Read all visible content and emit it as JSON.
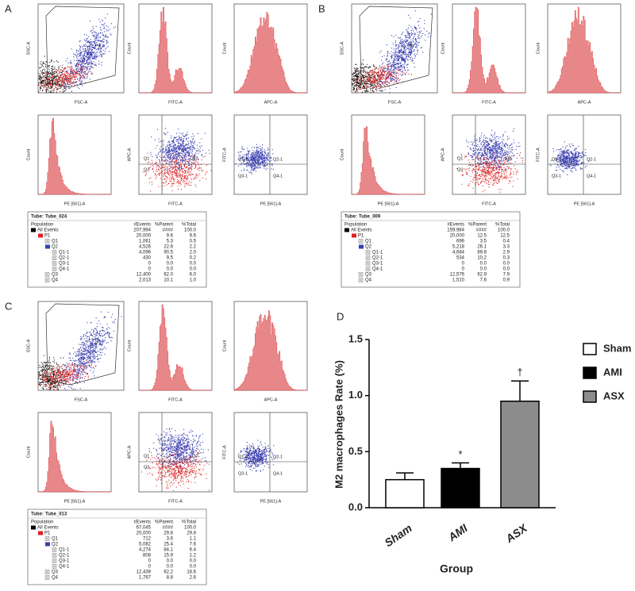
{
  "plots": {
    "axes": [
      [
        "FSC-A",
        "SSC-A"
      ],
      [
        "FITC-A",
        "Count"
      ],
      [
        "APC-A",
        "Count"
      ],
      [
        "PE [561]-A",
        "Count"
      ],
      [
        "FITC-A",
        "APC-A"
      ],
      [
        "PE [561]-A",
        "FITC-A"
      ]
    ],
    "gate": "P1",
    "quad1": [
      "Q1",
      "Q2",
      "Q3"
    ],
    "quad2": [
      "Q1-1",
      "Q2-1",
      "Q3-1",
      "Q4-1"
    ]
  },
  "panels": [
    {
      "label": "A",
      "tube_label": "Tube:",
      "tube": "Tube_024",
      "header": [
        "Population",
        "#Events",
        "%Parent",
        "%Total"
      ],
      "rows": [
        [
          "All Events",
          "207,994",
          "####",
          "100.0"
        ],
        [
          "P1",
          "20,000",
          "9.6",
          "9.6"
        ],
        [
          "Q1",
          "1,061",
          "5.3",
          "0.5"
        ],
        [
          "Q2",
          "4,526",
          "22.6",
          "2.2"
        ],
        [
          "Q1-1",
          "4,096",
          "90.5",
          "2.0"
        ],
        [
          "Q2-1",
          "430",
          "9.5",
          "0.2"
        ],
        [
          "Q3-1",
          "0",
          "0.0",
          "0.0"
        ],
        [
          "Q4-1",
          "0",
          "0.0",
          "0.0"
        ],
        [
          "Q3",
          "12,400",
          "62.0",
          "6.0"
        ],
        [
          "Q4",
          "2,013",
          "10.1",
          "1.0"
        ]
      ]
    },
    {
      "label": "B",
      "tube_label": "Tube:",
      "tube": "Tube_009",
      "header": [
        "Population",
        "#Events",
        "%Parent",
        "%Total"
      ],
      "rows": [
        [
          "All Events",
          "159,984",
          "####",
          "100.0"
        ],
        [
          "P1",
          "20,000",
          "12.5",
          "12.5"
        ],
        [
          "Q1",
          "696",
          "3.5",
          "0.4"
        ],
        [
          "Q2",
          "5,218",
          "26.1",
          "3.3"
        ],
        [
          "Q1-1",
          "4,684",
          "89.8",
          "2.9"
        ],
        [
          "Q2-1",
          "534",
          "10.2",
          "0.3"
        ],
        [
          "Q3-1",
          "0",
          "0.0",
          "0.0"
        ],
        [
          "Q4-1",
          "0",
          "0.0",
          "0.0"
        ],
        [
          "Q3",
          "12,576",
          "62.9",
          "7.9"
        ],
        [
          "Q4",
          "1,510",
          "7.6",
          "0.9"
        ]
      ]
    },
    {
      "label": "C",
      "tube_label": "Tube:",
      "tube": "Tube_013",
      "header": [
        "Population",
        "#Events",
        "%Parent",
        "%Total"
      ],
      "rows": [
        [
          "All Events",
          "67,045",
          "####",
          "100.0"
        ],
        [
          "P1",
          "20,000",
          "29.8",
          "29.8"
        ],
        [
          "Q1",
          "712",
          "3.6",
          "1.1"
        ],
        [
          "Q2",
          "5,082",
          "25.4",
          "7.6"
        ],
        [
          "Q1-1",
          "4,274",
          "84.1",
          "6.4"
        ],
        [
          "Q2-1",
          "808",
          "15.9",
          "1.2"
        ],
        [
          "Q3-1",
          "0",
          "0.0",
          "0.0"
        ],
        [
          "Q4-1",
          "0",
          "0.0",
          "0.0"
        ],
        [
          "Q3",
          "12,439",
          "62.2",
          "18.6"
        ],
        [
          "Q4",
          "1,767",
          "8.8",
          "2.6"
        ]
      ]
    }
  ],
  "chart_data": {
    "type": "bar",
    "label": "D",
    "y_label": "M2 macrophages Rate (%)",
    "x_label": "Group",
    "categories": [
      "Sham",
      "AMI",
      "ASX"
    ],
    "values": [
      0.25,
      0.35,
      0.95
    ],
    "errors": [
      0.06,
      0.05,
      0.18
    ],
    "annotations": [
      null,
      "*",
      "†"
    ],
    "colors": [
      "#ffffff",
      "#000000",
      "#8c8c8c"
    ],
    "ylim": [
      0,
      1.5
    ],
    "yticks": [
      {
        "value": 0,
        "label": "0.0"
      },
      0.5,
      {
        "value": 1,
        "label": "1.0"
      },
      1.5
    ]
  }
}
